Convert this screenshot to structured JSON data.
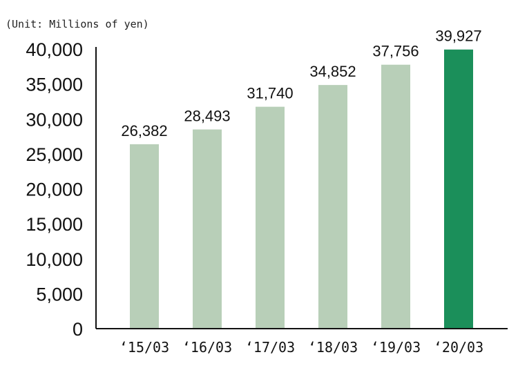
{
  "chart_data": {
    "type": "bar",
    "unit_label": "(Unit: Millions of yen)",
    "title": "",
    "xlabel": "",
    "ylabel": "",
    "categories": [
      "‘15/03",
      "‘16/03",
      "‘17/03",
      "‘18/03",
      "‘19/03",
      "‘20/03"
    ],
    "values": [
      26382,
      28493,
      31740,
      34852,
      37756,
      39927
    ],
    "value_labels": [
      "26,382",
      "28,493",
      "31,740",
      "34,852",
      "37,756",
      "39,927"
    ],
    "ylim": [
      0,
      40000
    ],
    "yticks": [
      0,
      5000,
      10000,
      15000,
      20000,
      25000,
      30000,
      35000,
      40000
    ],
    "ytick_labels": [
      "0",
      "5,000",
      "10,000",
      "15,000",
      "20,000",
      "25,000",
      "30,000",
      "35,000",
      "40,000"
    ],
    "grid": false,
    "legend": "none",
    "colors": {
      "bar": "#b8cfb8",
      "highlight": "#1b8f5a",
      "axis": "#111111"
    },
    "highlight_index": 5
  }
}
